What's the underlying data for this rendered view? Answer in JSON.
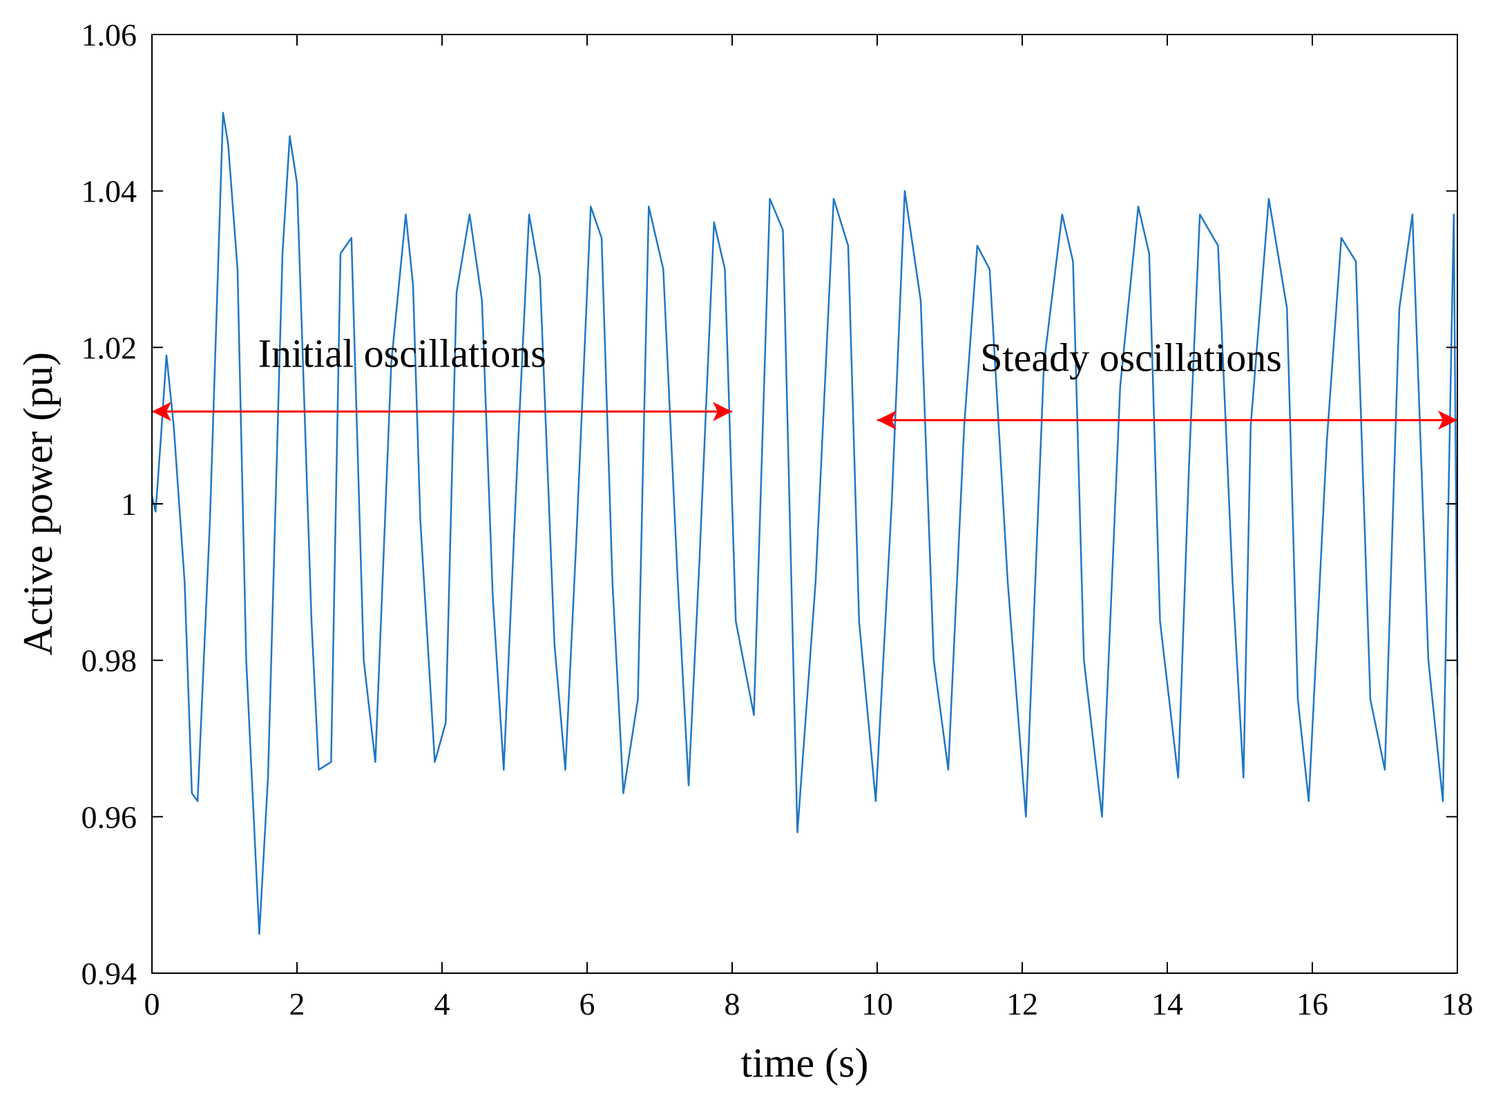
{
  "chart_data": {
    "type": "line",
    "title": "",
    "xlabel": "time (s)",
    "ylabel": "Active power (pu)",
    "xlim": [
      0,
      18
    ],
    "ylim": [
      0.94,
      1.06
    ],
    "x_ticks": [
      0,
      2,
      4,
      6,
      8,
      10,
      12,
      14,
      16,
      18
    ],
    "x_tick_labels": [
      "0",
      "2",
      "4",
      "6",
      "8",
      "10",
      "12",
      "14",
      "16",
      "18"
    ],
    "y_ticks": [
      0.94,
      0.96,
      0.98,
      1.0,
      1.02,
      1.04,
      1.06
    ],
    "y_tick_labels": [
      "0.94",
      "0.96",
      "0.98",
      "1",
      "1.02",
      "1.04",
      "1.06"
    ],
    "grid": false,
    "series": [
      {
        "name": "Active power",
        "color": "#1f77c4",
        "x": [
          0.0,
          0.05,
          0.12,
          0.2,
          0.3,
          0.45,
          0.55,
          0.63,
          0.8,
          0.98,
          1.05,
          1.18,
          1.3,
          1.48,
          1.6,
          1.8,
          1.9,
          2.0,
          2.2,
          2.3,
          2.47,
          2.6,
          2.75,
          2.92,
          3.08,
          3.3,
          3.5,
          3.6,
          3.7,
          3.9,
          4.05,
          4.2,
          4.38,
          4.55,
          4.7,
          4.85,
          5.05,
          5.2,
          5.35,
          5.55,
          5.7,
          5.85,
          6.05,
          6.2,
          6.35,
          6.5,
          6.7,
          6.85,
          7.05,
          7.25,
          7.4,
          7.55,
          7.75,
          7.9,
          8.05,
          8.3,
          8.52,
          8.7,
          8.9,
          9.15,
          9.4,
          9.6,
          9.75,
          9.98,
          10.2,
          10.38,
          10.6,
          10.78,
          10.98,
          11.2,
          11.38,
          11.55,
          11.8,
          12.05,
          12.3,
          12.55,
          12.7,
          12.85,
          13.1,
          13.35,
          13.6,
          13.75,
          13.9,
          14.15,
          14.3,
          14.45,
          14.7,
          14.9,
          15.05,
          15.15,
          15.4,
          15.65,
          15.8,
          15.95,
          16.2,
          16.4,
          16.6,
          16.8,
          17.0,
          17.2,
          17.38,
          17.6,
          17.8,
          17.95,
          18.0
        ],
        "y": [
          1.001,
          0.999,
          1.008,
          1.019,
          1.01,
          0.99,
          0.963,
          0.962,
          0.998,
          1.05,
          1.046,
          1.03,
          0.98,
          0.945,
          0.965,
          1.032,
          1.047,
          1.041,
          0.985,
          0.966,
          0.967,
          1.032,
          1.034,
          0.98,
          0.967,
          1.018,
          1.037,
          1.028,
          0.998,
          0.967,
          0.972,
          1.027,
          1.037,
          1.026,
          0.988,
          0.966,
          1.008,
          1.037,
          1.029,
          0.982,
          0.966,
          0.995,
          1.038,
          1.034,
          0.99,
          0.963,
          0.975,
          1.038,
          1.03,
          0.99,
          0.964,
          0.993,
          1.036,
          1.03,
          0.985,
          0.973,
          1.039,
          1.035,
          0.958,
          0.99,
          1.039,
          1.033,
          0.985,
          0.962,
          1.0,
          1.04,
          1.026,
          0.98,
          0.966,
          1.01,
          1.033,
          1.03,
          0.99,
          0.96,
          1.018,
          1.037,
          1.031,
          0.98,
          0.96,
          1.015,
          1.038,
          1.032,
          0.985,
          0.965,
          1.005,
          1.037,
          1.033,
          0.99,
          0.965,
          1.01,
          1.039,
          1.025,
          0.975,
          0.962,
          1.008,
          1.034,
          1.031,
          0.975,
          0.966,
          1.025,
          1.037,
          0.98,
          0.962,
          1.037,
          0.978
        ]
      }
    ],
    "annotations": [
      {
        "name": "initial",
        "text": "Initial oscillations",
        "x_start": 0,
        "x_end": 8,
        "y": 1.0118,
        "label_x": 3.45,
        "label_y": 1.0175
      },
      {
        "name": "steady",
        "text": "Steady oscillations",
        "x_start": 10,
        "x_end": 18,
        "y": 1.0107,
        "label_x": 13.5,
        "label_y": 1.017
      }
    ],
    "annotation_color": "#ff0000",
    "axes_color": "#000000"
  }
}
